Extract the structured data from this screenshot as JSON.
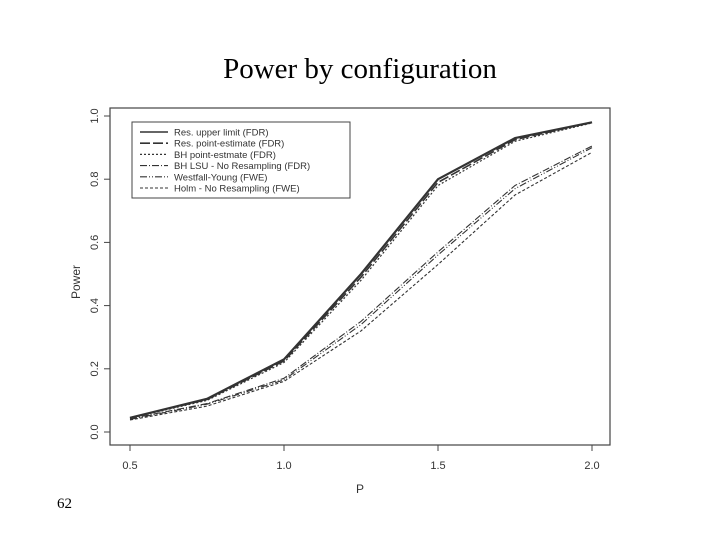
{
  "slide": {
    "title": "Power by configuration",
    "page_number": "62"
  },
  "chart_data": {
    "type": "line",
    "title": "",
    "xlabel": "P",
    "ylabel": "Power",
    "xlim": [
      0.5,
      2.0
    ],
    "ylim": [
      0.0,
      1.0
    ],
    "x_ticks": [
      "0.5",
      "1.0",
      "1.5",
      "2.0"
    ],
    "y_ticks": [
      "0.0",
      "0.2",
      "0.4",
      "0.6",
      "0.8",
      "1.0"
    ],
    "grid": false,
    "legend_position": "top-left",
    "x": [
      0.5,
      0.75,
      1.0,
      1.25,
      1.5,
      1.75,
      2.0
    ],
    "series": [
      {
        "name": "Res. upper limit (FDR)",
        "values": [
          0.045,
          0.105,
          0.23,
          0.5,
          0.8,
          0.93,
          0.98
        ]
      },
      {
        "name": "Res. point-estimate (FDR)",
        "values": [
          0.045,
          0.103,
          0.225,
          0.49,
          0.79,
          0.925,
          0.98
        ]
      },
      {
        "name": "BH point-estmate (FDR)",
        "values": [
          0.044,
          0.1,
          0.22,
          0.48,
          0.78,
          0.92,
          0.978
        ]
      },
      {
        "name": "BH LSU - No Resampling (FDR)",
        "values": [
          0.042,
          0.09,
          0.17,
          0.35,
          0.57,
          0.78,
          0.905
        ]
      },
      {
        "name": "Westfall-Young (FWE)",
        "values": [
          0.04,
          0.088,
          0.165,
          0.34,
          0.56,
          0.77,
          0.9
        ]
      },
      {
        "name": "Holm - No Resampling (FWE)",
        "values": [
          0.038,
          0.082,
          0.16,
          0.32,
          0.53,
          0.75,
          0.885
        ]
      }
    ],
    "line_color": "#333333"
  }
}
